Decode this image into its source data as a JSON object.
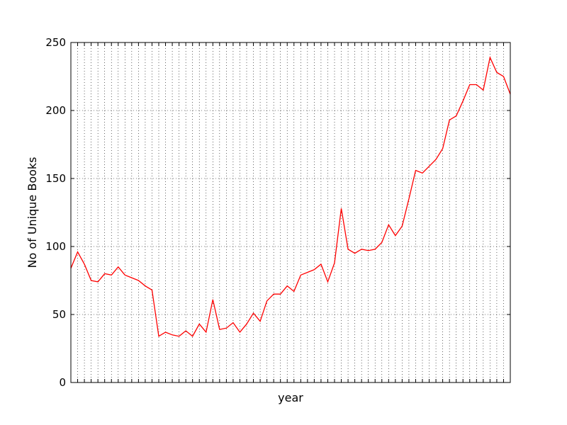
{
  "chart_data": {
    "type": "line",
    "title": "",
    "xlabel": "year",
    "ylabel": "No of Unique Books",
    "ylim": [
      0,
      250
    ],
    "yticks": [
      0,
      50,
      100,
      150,
      200,
      250
    ],
    "grid": true,
    "legend": "none",
    "line_color": "#ff0000",
    "x_tick_labels_shown": false,
    "series": [
      {
        "values": [
          84,
          96,
          87,
          75,
          74,
          80,
          79,
          85,
          79,
          77,
          75,
          71,
          68,
          34,
          37,
          35,
          34,
          38,
          34,
          43,
          37,
          61,
          39,
          40,
          44,
          37,
          43,
          51,
          45,
          60,
          65,
          65,
          71,
          67,
          79,
          81,
          83,
          87,
          74,
          88,
          128,
          98,
          95,
          98,
          97,
          98,
          103,
          116,
          108,
          115,
          135,
          156,
          154,
          159,
          164,
          172,
          193,
          196,
          207,
          219,
          219,
          215,
          239,
          228,
          225,
          212
        ]
      }
    ]
  }
}
